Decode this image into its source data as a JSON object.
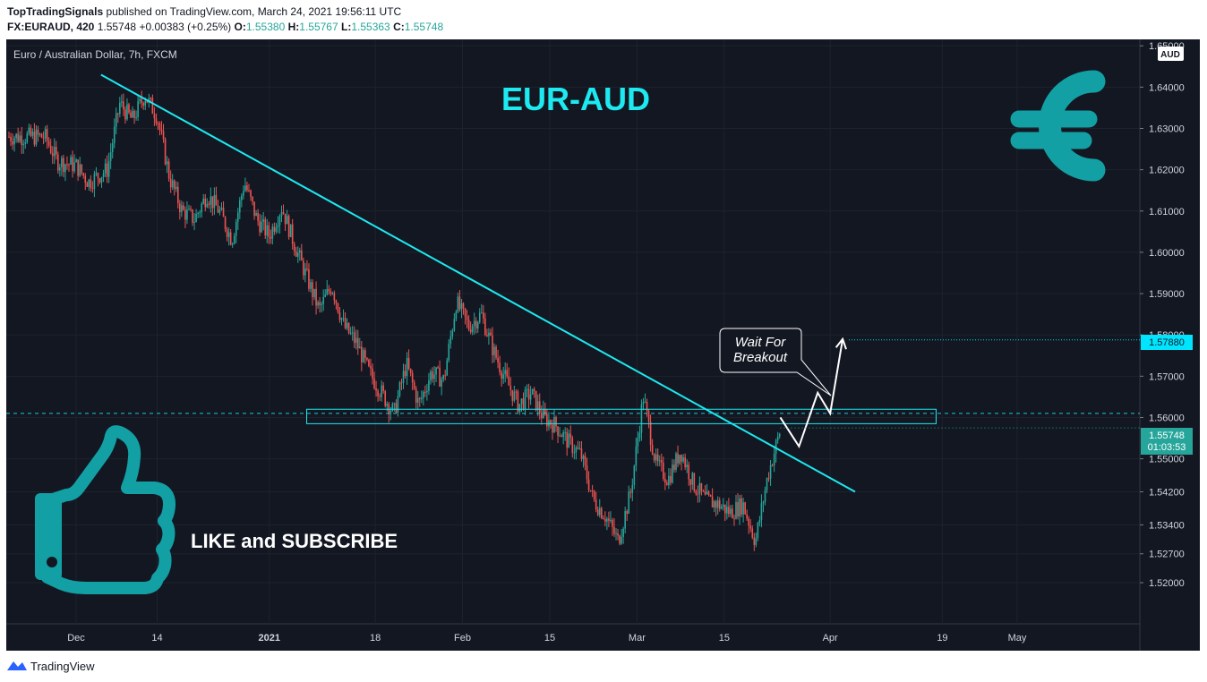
{
  "header": {
    "author": "TopTradingSignals",
    "published_text": "published on TradingView.com, March 24, 2021 19:56:11 UTC",
    "symbol_interval": "FX:EURAUD, 420",
    "last_price": "1.55748",
    "change": "+0.00383 (+0.25%)",
    "open_label": "O:",
    "open": "1.55380",
    "high_label": "H:",
    "high": "1.55767",
    "low_label": "L:",
    "low": "1.55363",
    "close_label": "C:",
    "close": "1.55748"
  },
  "chart": {
    "symbol_title": "Euro / Australian Dollar, 7h, FXCM",
    "currency_badge": "AUD",
    "annotation_title": "EUR-AUD",
    "like_text": "LIKE and SUBSCRIBE",
    "note_line1": "Wait For",
    "note_line2": "Breakout",
    "target_price_label": "1.57880",
    "current_price_label": "1.55748",
    "countdown_label": "01:03:53"
  },
  "footer": {
    "brand": "TradingView"
  },
  "colors": {
    "background": "#131722",
    "up": "#26a69a",
    "down": "#ef5350",
    "trendline": "#1de9f0",
    "accent_teal": "#12a0a4",
    "target_badge": "#00e5ff"
  },
  "chart_data": {
    "type": "candlestick",
    "title": "Euro / Australian Dollar, 7h, FXCM",
    "ylim": [
      1.517,
      1.651
    ],
    "y_ticks": [
      {
        "v": 1.65,
        "label": "1.65000"
      },
      {
        "v": 1.64,
        "label": "1.64000"
      },
      {
        "v": 1.63,
        "label": "1.63000"
      },
      {
        "v": 1.62,
        "label": "1.62000"
      },
      {
        "v": 1.61,
        "label": "1.61000"
      },
      {
        "v": 1.6,
        "label": "1.60000"
      },
      {
        "v": 1.59,
        "label": "1.59000"
      },
      {
        "v": 1.58,
        "label": "1.58000"
      },
      {
        "v": 1.57,
        "label": "1.57000"
      },
      {
        "v": 1.56,
        "label": "1.56000"
      },
      {
        "v": 1.55,
        "label": "1.55000"
      },
      {
        "v": 1.542,
        "label": "1.54200"
      },
      {
        "v": 1.534,
        "label": "1.53400"
      },
      {
        "v": 1.527,
        "label": "1.52700"
      },
      {
        "v": 1.52,
        "label": "1.52000"
      }
    ],
    "x_ticks": [
      {
        "label": "Dec",
        "bold": false
      },
      {
        "label": "14",
        "bold": false
      },
      {
        "label": "2021",
        "bold": true
      },
      {
        "label": "18",
        "bold": false
      },
      {
        "label": "Feb",
        "bold": false
      },
      {
        "label": "15",
        "bold": false
      },
      {
        "label": "Mar",
        "bold": false
      },
      {
        "label": "15",
        "bold": false
      },
      {
        "label": "Apr",
        "bold": false
      },
      {
        "label": "19",
        "bold": false
      },
      {
        "label": "May",
        "bold": false
      }
    ],
    "price_path": [
      [
        "2020-11-26",
        1.628
      ],
      [
        "2020-11-28",
        1.622
      ],
      [
        "2020-12-01",
        1.621
      ],
      [
        "2020-12-03",
        1.617
      ],
      [
        "2020-12-06",
        1.62
      ],
      [
        "2020-12-08",
        1.636
      ],
      [
        "2020-12-10",
        1.632
      ],
      [
        "2020-12-12",
        1.638
      ],
      [
        "2020-12-14",
        1.633
      ],
      [
        "2020-12-16",
        1.618
      ],
      [
        "2020-12-18",
        1.61
      ],
      [
        "2020-12-20",
        1.608
      ],
      [
        "2020-12-22",
        1.614
      ],
      [
        "2020-12-24",
        1.61
      ],
      [
        "2020-12-26",
        1.603
      ],
      [
        "2020-12-28",
        1.617
      ],
      [
        "2020-12-30",
        1.608
      ],
      [
        "2021-01-01",
        1.604
      ],
      [
        "2021-01-03",
        1.611
      ],
      [
        "2021-01-05",
        1.602
      ],
      [
        "2021-01-07",
        1.594
      ],
      [
        "2021-01-09",
        1.586
      ],
      [
        "2021-01-11",
        1.592
      ],
      [
        "2021-01-13",
        1.582
      ],
      [
        "2021-01-15",
        1.578
      ],
      [
        "2021-01-17",
        1.571
      ],
      [
        "2021-01-19",
        1.566
      ],
      [
        "2021-01-21",
        1.561
      ],
      [
        "2021-01-23",
        1.573
      ],
      [
        "2021-01-25",
        1.563
      ],
      [
        "2021-01-27",
        1.571
      ],
      [
        "2021-01-29",
        1.569
      ],
      [
        "2021-01-31",
        1.588
      ],
      [
        "2021-02-02",
        1.582
      ],
      [
        "2021-02-04",
        1.585
      ],
      [
        "2021-02-06",
        1.576
      ],
      [
        "2021-02-08",
        1.569
      ],
      [
        "2021-02-10",
        1.563
      ],
      [
        "2021-02-12",
        1.566
      ],
      [
        "2021-02-14",
        1.56
      ],
      [
        "2021-02-16",
        1.558
      ],
      [
        "2021-02-18",
        1.554
      ],
      [
        "2021-02-20",
        1.551
      ],
      [
        "2021-02-22",
        1.54
      ],
      [
        "2021-02-24",
        1.536
      ],
      [
        "2021-02-26",
        1.53
      ],
      [
        "2021-02-28",
        1.542
      ],
      [
        "2021-03-02",
        1.565
      ],
      [
        "2021-03-04",
        1.549
      ],
      [
        "2021-03-06",
        1.545
      ],
      [
        "2021-03-08",
        1.552
      ],
      [
        "2021-03-10",
        1.544
      ],
      [
        "2021-03-12",
        1.54
      ],
      [
        "2021-03-14",
        1.539
      ],
      [
        "2021-03-16",
        1.537
      ],
      [
        "2021-03-18",
        1.539
      ],
      [
        "2021-03-20",
        1.53
      ],
      [
        "2021-03-22",
        1.546
      ],
      [
        "2021-03-24",
        1.557
      ]
    ],
    "levels": [
      {
        "name": "support resistance zone",
        "from": 1.5585,
        "to": 1.562
      },
      {
        "name": "breakout level",
        "value": 1.561
      },
      {
        "name": "target",
        "value": 1.5788
      }
    ],
    "trendline": [
      [
        "2020-12-05",
        1.643
      ],
      [
        "2021-04-05",
        1.542
      ]
    ],
    "projection": [
      [
        "2021-03-24",
        1.56
      ],
      [
        "2021-03-27",
        1.553
      ],
      [
        "2021-03-30",
        1.566
      ],
      [
        "2021-04-01",
        1.561
      ],
      [
        "2021-04-03",
        1.579
      ]
    ],
    "last_price": 1.55748
  }
}
